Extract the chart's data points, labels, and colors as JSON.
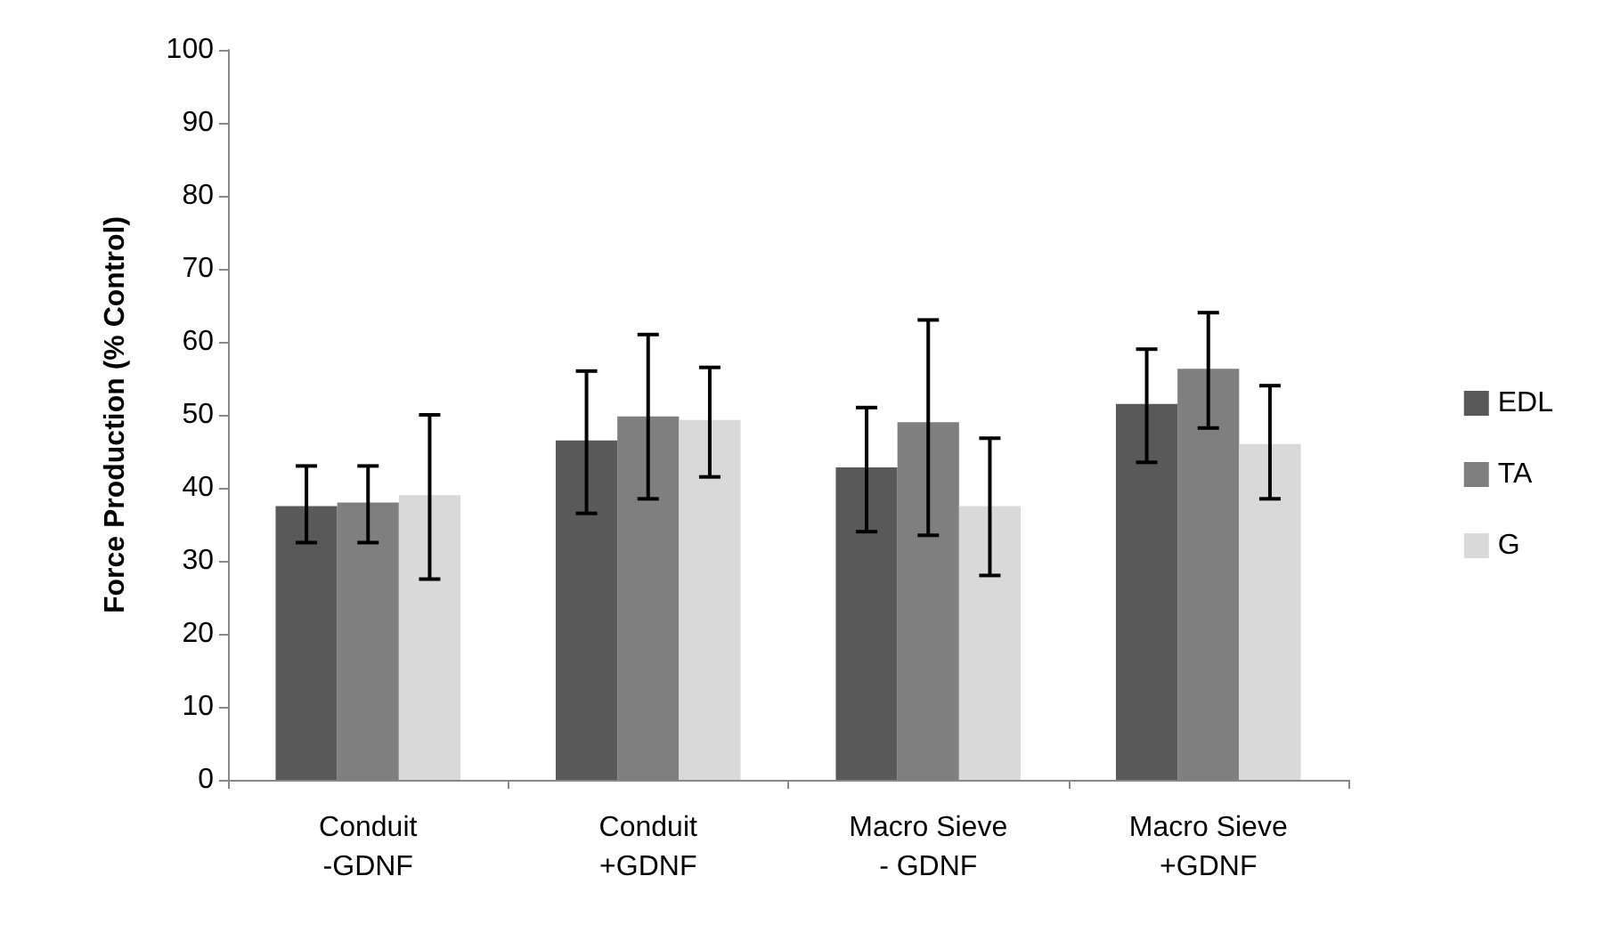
{
  "chart_data": {
    "type": "bar",
    "ylabel": "Force Production (% Control)",
    "categories": [
      "Conduit\n-GDNF",
      "Conduit\n+GDNF",
      "Macro Sieve\n- GDNF",
      "Macro Sieve\n+GDNF"
    ],
    "series": [
      {
        "name": "EDL",
        "color": "#595959",
        "values": [
          37.5,
          46.5,
          42.8,
          51.5
        ],
        "errors": [
          [
            32.5,
            43
          ],
          [
            36.5,
            56
          ],
          [
            34,
            51
          ],
          [
            43.5,
            59
          ]
        ]
      },
      {
        "name": "TA",
        "color": "#7f7f7f",
        "values": [
          38,
          49.8,
          49,
          56.3
        ],
        "errors": [
          [
            32.5,
            43
          ],
          [
            38.5,
            61
          ],
          [
            33.5,
            63
          ],
          [
            48.2,
            64
          ]
        ]
      },
      {
        "name": "G",
        "color": "#d9d9d9",
        "values": [
          39,
          49.3,
          37.5,
          46
        ],
        "errors": [
          [
            27.5,
            50
          ],
          [
            41.5,
            56.5
          ],
          [
            28,
            46.8
          ],
          [
            38.5,
            54
          ]
        ]
      }
    ],
    "ylim": [
      0,
      100
    ],
    "yticks": [
      0,
      10,
      20,
      30,
      40,
      50,
      60,
      70,
      80,
      90,
      100
    ],
    "grid": false,
    "legend": "right"
  }
}
